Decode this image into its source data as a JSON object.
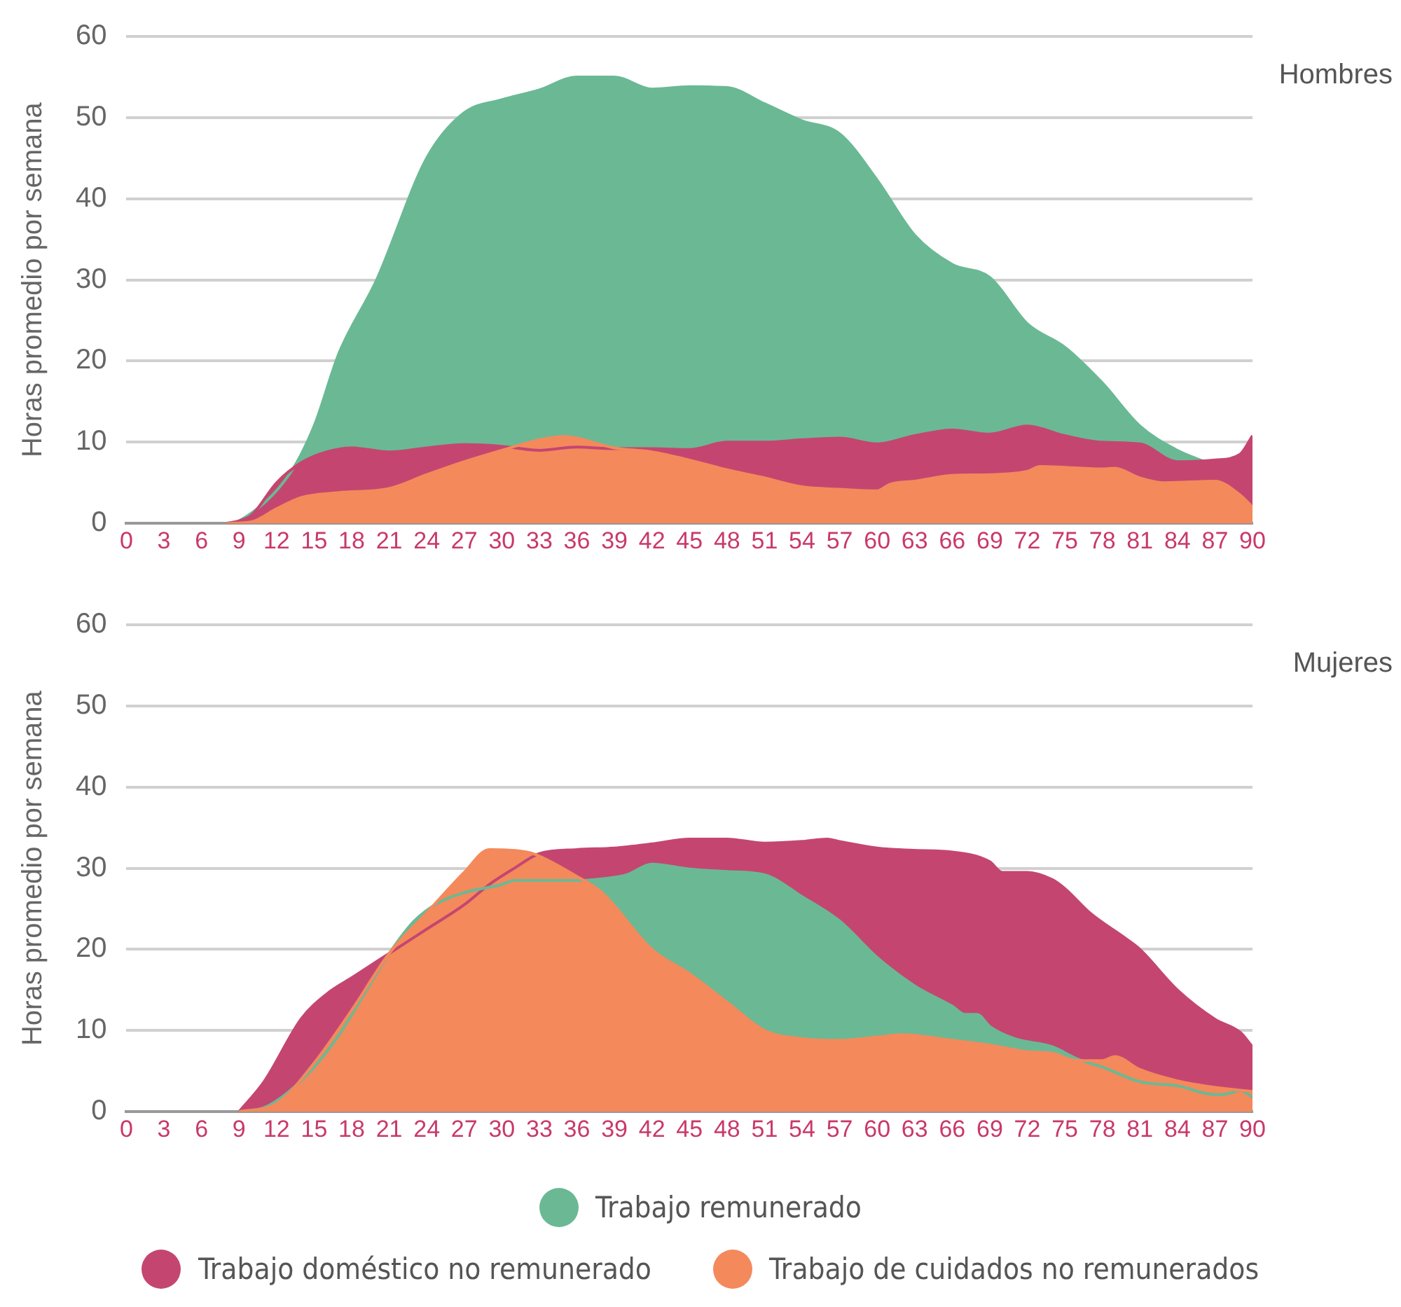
{
  "chart_data": [
    {
      "type": "area",
      "ylabel": "Horas promedio por semana",
      "annotations": [
        "Hombres"
      ],
      "xlim": [
        0,
        90
      ],
      "xticks": [
        0,
        3,
        6,
        9,
        12,
        15,
        18,
        21,
        24,
        27,
        30,
        33,
        36,
        39,
        42,
        45,
        48,
        51,
        54,
        57,
        60,
        63,
        66,
        69,
        72,
        75,
        78,
        81,
        84,
        87,
        90
      ],
      "ylim": [
        0,
        60
      ],
      "yticks": [
        0,
        10,
        20,
        30,
        40,
        50,
        60
      ],
      "grid": "y",
      "legend": "bottom",
      "marker": "none",
      "series": [
        {
          "name": "Trabajo remunerado",
          "color": "#6ab994",
          "x": [
            8,
            9,
            13,
            15,
            17,
            20,
            24,
            27,
            30,
            33,
            36,
            39,
            42,
            45,
            48,
            51,
            54,
            57,
            60,
            63,
            66,
            69,
            72,
            75,
            78,
            81,
            84,
            86
          ],
          "values": [
            0,
            0.3,
            6,
            12,
            21,
            30,
            45,
            50.6,
            52.2,
            53.4,
            55,
            55,
            53.5,
            53.8,
            53.7,
            51.7,
            49.6,
            48,
            42.3,
            35.5,
            31.9,
            30.3,
            24.6,
            21.7,
            17.3,
            12,
            9,
            7.7
          ]
        },
        {
          "name": "Trabajo doméstico no remunerado",
          "color": "#c44670",
          "x": [
            8,
            9,
            10,
            12,
            14,
            16,
            18,
            21,
            24,
            27,
            30,
            33,
            36,
            39,
            42,
            45,
            48,
            51,
            54,
            57,
            60,
            63,
            66,
            69,
            72,
            75,
            78,
            81,
            84,
            87,
            89,
            90
          ],
          "values": [
            0,
            0.3,
            1,
            5,
            7.5,
            8.8,
            9.3,
            8.8,
            9.3,
            9.7,
            9.5,
            9,
            9.4,
            9.2,
            9.2,
            9.1,
            10,
            10,
            10.3,
            10.5,
            9.8,
            10.8,
            11.5,
            11,
            12,
            10.8,
            10,
            9.8,
            7.6,
            7.8,
            8.5,
            10.8
          ]
        },
        {
          "name": "Trabajo de cuidados no remunerados",
          "color": "#f4895c",
          "x": [
            8,
            10,
            12,
            14,
            17,
            21,
            24,
            27,
            30,
            33,
            35,
            36,
            39,
            42,
            45,
            48,
            51,
            54,
            57,
            60,
            61,
            63,
            66,
            69,
            72,
            73,
            75,
            78,
            79,
            81,
            83,
            87,
            89,
            90
          ],
          "values": [
            0,
            0.2,
            1.8,
            3.2,
            3.8,
            4.3,
            6,
            7.6,
            9,
            10.3,
            10.7,
            10.5,
            9.3,
            8.8,
            7.8,
            6.6,
            5.6,
            4.5,
            4.2,
            4,
            4.8,
            5.2,
            5.9,
            6,
            6.4,
            7,
            6.9,
            6.7,
            6.8,
            5.6,
            5,
            5.2,
            3.5,
            2
          ]
        }
      ]
    },
    {
      "type": "area",
      "ylabel": "Horas promedio por semana",
      "annotations": [
        "Mujeres"
      ],
      "xlim": [
        0,
        90
      ],
      "xticks": [
        0,
        3,
        6,
        9,
        12,
        15,
        18,
        21,
        24,
        27,
        30,
        33,
        36,
        39,
        42,
        45,
        48,
        51,
        54,
        57,
        60,
        63,
        66,
        69,
        72,
        75,
        78,
        81,
        84,
        87,
        90
      ],
      "ylim": [
        0,
        60
      ],
      "yticks": [
        0,
        10,
        20,
        30,
        40,
        50,
        60
      ],
      "grid": "y",
      "legend": "bottom",
      "marker": "none",
      "series": [
        {
          "name": "Trabajo doméstico no remunerado",
          "color": "#c44670",
          "x": [
            9,
            11,
            14,
            16,
            18,
            21,
            24,
            27,
            29,
            31,
            33,
            36,
            39,
            42,
            45,
            48,
            51,
            54,
            56,
            57,
            60,
            63,
            66,
            69,
            70,
            72,
            74,
            75,
            77,
            80,
            81,
            84,
            87,
            89,
            90
          ],
          "values": [
            0,
            3.7,
            11.5,
            14.5,
            16.5,
            19.5,
            22.5,
            25.5,
            28,
            30,
            31.8,
            32.3,
            32.5,
            33,
            33.6,
            33.6,
            33.1,
            33.3,
            33.6,
            33.3,
            32.5,
            32.2,
            32,
            30.8,
            29.5,
            29.5,
            28.6,
            27.5,
            24.5,
            21.2,
            20,
            15,
            11.4,
            9.8,
            8
          ]
        },
        {
          "name": "Trabajo remunerado",
          "color": "#6ab994",
          "x": [
            9,
            11,
            13,
            15,
            17,
            19,
            21,
            23,
            25,
            27,
            30,
            31,
            36,
            38,
            40,
            42,
            45,
            48,
            51,
            54,
            57,
            60,
            63,
            66,
            67,
            68,
            69,
            71,
            74,
            76,
            78,
            81,
            84,
            87,
            88,
            89,
            90
          ],
          "values": [
            0,
            0.5,
            2.5,
            5.5,
            9.5,
            14.5,
            19.5,
            23.5,
            25.8,
            27,
            28,
            28.5,
            28.5,
            28.7,
            29.2,
            30.5,
            29.9,
            29.6,
            29.2,
            26.5,
            23.5,
            19,
            15.5,
            13,
            12,
            12,
            10.5,
            9,
            8,
            6.5,
            5.5,
            3.7,
            3.2,
            2.1,
            2.2,
            2.6,
            1.8
          ]
        },
        {
          "name": "Trabajo de cuidados no remunerados",
          "color": "#f4895c",
          "x": [
            9,
            12,
            15,
            18,
            21,
            24,
            27,
            29,
            32,
            33,
            36,
            38,
            42,
            45,
            48,
            51,
            54,
            57,
            60,
            62,
            66,
            69,
            72,
            74,
            76,
            78,
            79,
            81,
            84,
            87,
            90
          ],
          "values": [
            0,
            1,
            6,
            12.5,
            19.5,
            24.5,
            29.5,
            32.3,
            32,
            31.5,
            29,
            27,
            20,
            17,
            13.5,
            10,
            9,
            8.8,
            9.2,
            9.5,
            8.8,
            8.2,
            7.4,
            7.2,
            6.3,
            6.3,
            6.8,
            5.2,
            3.8,
            3,
            2.5
          ]
        }
      ]
    }
  ]
}
